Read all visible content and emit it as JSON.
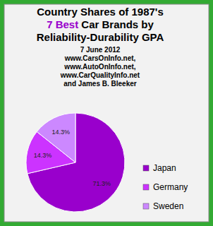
{
  "chart_data": {
    "type": "pie",
    "title": [
      "Country Shares of 1987's",
      "7 Best",
      "Car Brands by",
      "Reliability-Durability GPA"
    ],
    "subtitle": [
      "7 June 2012",
      "www.CarsOnInfo.net,",
      "www.AutoOnInfo.net,",
      "www.CarQualityInfo.net",
      "and James B. Bleeker"
    ],
    "categories": [
      "Japan",
      "Germany",
      "Sweden"
    ],
    "values": [
      71.3,
      14.3,
      14.3
    ],
    "value_labels": [
      "71.3%",
      "14.3%",
      "14.3%"
    ],
    "colors": [
      "#9900cc",
      "#cc33ff",
      "#cc88ff"
    ],
    "data_labels": true,
    "legend": "right"
  }
}
